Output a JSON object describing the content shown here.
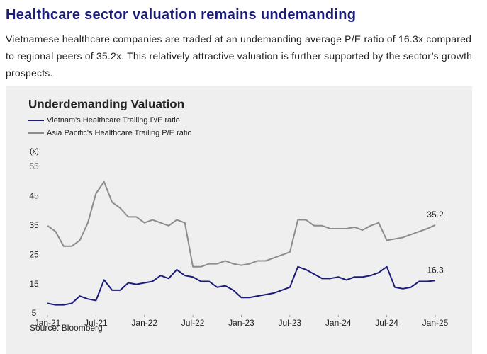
{
  "heading": "Healthcare sector valuation remains undemanding",
  "paragraph": "Vietnamese healthcare companies are traded at an undemanding average P/E ratio of 16.3x compared to regional peers of 35.2x. This relatively attractive valuation is further supported by the sector’s growth prospects.",
  "chart_data": {
    "type": "line",
    "title": "Underdemanding Valuation",
    "y_label": "(x)",
    "source": "Source: Bloomberg",
    "x": [
      "2021-01",
      "2021-02",
      "2021-03",
      "2021-04",
      "2021-05",
      "2021-06",
      "2021-07",
      "2021-08",
      "2021-09",
      "2021-10",
      "2021-11",
      "2021-12",
      "2022-01",
      "2022-02",
      "2022-03",
      "2022-04",
      "2022-05",
      "2022-06",
      "2022-07",
      "2022-08",
      "2022-09",
      "2022-10",
      "2022-11",
      "2022-12",
      "2023-01",
      "2023-02",
      "2023-03",
      "2023-04",
      "2023-05",
      "2023-06",
      "2023-07",
      "2023-08",
      "2023-09",
      "2023-10",
      "2023-11",
      "2023-12",
      "2024-01",
      "2024-02",
      "2024-03",
      "2024-04",
      "2024-05",
      "2024-06",
      "2024-07",
      "2024-08",
      "2024-09",
      "2024-10",
      "2024-11",
      "2024-12",
      "2025-01"
    ],
    "series": [
      {
        "name": "Vietnam's Healthcare Trailing P/E ratio",
        "color": "#1b1b7a",
        "values": [
          8.5,
          8,
          8,
          8.5,
          11,
          10,
          9.5,
          16.5,
          13,
          13,
          15.5,
          15,
          15.5,
          16,
          18,
          17,
          20,
          18,
          17.5,
          16,
          16,
          14,
          14.5,
          13,
          10.5,
          10.5,
          11,
          11.5,
          12,
          13,
          14,
          21,
          20,
          18.5,
          17,
          17,
          17.5,
          16.5,
          17.5,
          17.5,
          18,
          19,
          21,
          14,
          13.5,
          14,
          16,
          16,
          16.3
        ]
      },
      {
        "name": "Asia Pacific's Healthcare Trailing P/E ratio",
        "color": "#8c8c8c",
        "values": [
          35,
          33,
          28,
          28,
          30,
          36,
          46,
          50,
          43,
          41,
          38,
          38,
          36,
          37,
          36,
          35,
          37,
          36,
          21,
          21,
          22,
          22,
          23,
          22,
          21.5,
          22,
          23,
          23,
          24,
          25,
          26,
          37,
          37,
          35,
          35,
          34,
          34,
          34,
          34.5,
          33.5,
          35,
          36,
          30,
          30.5,
          31,
          32,
          33,
          34,
          35.2
        ]
      }
    ],
    "xlim": [
      "2021-01",
      "2025-01"
    ],
    "xticks": [
      {
        "value": "2021-01",
        "label": "Jan-21"
      },
      {
        "value": "2021-07",
        "label": "Jul-21"
      },
      {
        "value": "2022-01",
        "label": "Jan-22"
      },
      {
        "value": "2022-07",
        "label": "Jul-22"
      },
      {
        "value": "2023-01",
        "label": "Jan-23"
      },
      {
        "value": "2023-07",
        "label": "Jul-23"
      },
      {
        "value": "2024-01",
        "label": "Jan-24"
      },
      {
        "value": "2024-07",
        "label": "Jul-24"
      },
      {
        "value": "2025-01",
        "label": "Jan-25"
      }
    ],
    "ylim": [
      5,
      55
    ],
    "yticks": [
      5,
      15,
      25,
      35,
      45,
      55
    ],
    "legend": "top-left"
  }
}
